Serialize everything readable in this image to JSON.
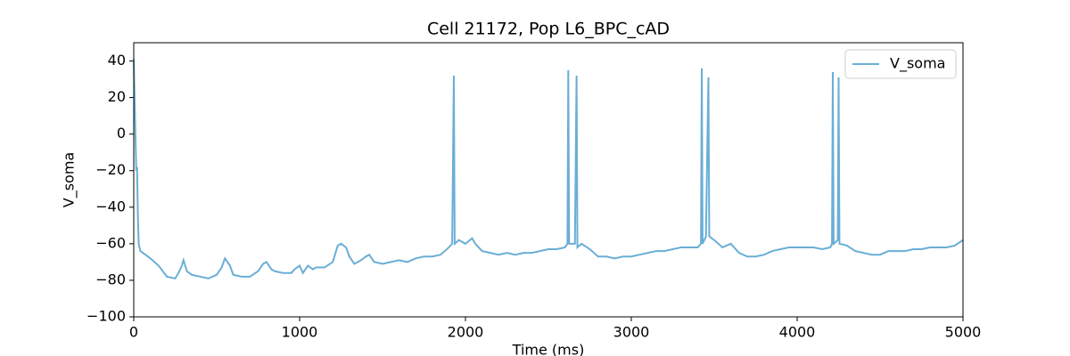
{
  "chart_data": {
    "type": "line",
    "title": "Cell 21172, Pop L6_BPC_cAD",
    "x_label": "Time (ms)",
    "y_label": "V_soma",
    "x": [
      0,
      10,
      15,
      20,
      25,
      30,
      40,
      100,
      150,
      200,
      250,
      270,
      290,
      300,
      320,
      350,
      400,
      450,
      500,
      530,
      550,
      580,
      600,
      650,
      700,
      750,
      780,
      800,
      830,
      850,
      900,
      950,
      970,
      1000,
      1020,
      1050,
      1080,
      1100,
      1150,
      1200,
      1230,
      1250,
      1280,
      1300,
      1330,
      1370,
      1400,
      1420,
      1450,
      1500,
      1550,
      1600,
      1650,
      1700,
      1750,
      1800,
      1850,
      1900,
      1920,
      1930,
      1935,
      1960,
      2000,
      2040,
      2060,
      2100,
      2150,
      2200,
      2250,
      2300,
      2350,
      2400,
      2450,
      2500,
      2550,
      2600,
      2615,
      2620,
      2625,
      2660,
      2670,
      2675,
      2700,
      2750,
      2800,
      2850,
      2900,
      2950,
      3000,
      3050,
      3100,
      3150,
      3200,
      3250,
      3300,
      3350,
      3400,
      3420,
      3425,
      3430,
      3450,
      3465,
      3470,
      3500,
      3550,
      3600,
      3650,
      3700,
      3750,
      3800,
      3850,
      3900,
      3950,
      4000,
      4050,
      4100,
      4150,
      4200,
      4210,
      4215,
      4220,
      4245,
      4250,
      4255,
      4300,
      4350,
      4400,
      4450,
      4500,
      4550,
      4600,
      4650,
      4700,
      4750,
      4800,
      4850,
      4900,
      4950,
      5000
    ],
    "series": [
      {
        "name": "V_soma",
        "color": "#6aaed6",
        "values": [
          41,
          0,
          -20,
          -18,
          -45,
          -60,
          -64,
          -68,
          -72,
          -78,
          -79,
          -76,
          -72,
          -69,
          -75,
          -77,
          -78,
          -79,
          -77,
          -73,
          -68,
          -72,
          -77,
          -78,
          -78,
          -75,
          -71,
          -70,
          -74,
          -75,
          -76,
          -76,
          -74,
          -72,
          -76,
          -72,
          -74,
          -73,
          -73,
          -70,
          -61,
          -60,
          -62,
          -67,
          -71,
          -69,
          -67,
          -66,
          -70,
          -71,
          -70,
          -69,
          -70,
          -68,
          -67,
          -67,
          -66,
          -62,
          -60,
          32,
          -60,
          -58,
          -60,
          -57,
          -60,
          -64,
          -65,
          -66,
          -65,
          -66,
          -65,
          -65,
          -64,
          -63,
          -63,
          -62,
          -60,
          35,
          -60,
          -60,
          32,
          -62,
          -60,
          -63,
          -67,
          -67,
          -68,
          -67,
          -67,
          -66,
          -65,
          -64,
          -64,
          -63,
          -62,
          -62,
          -62,
          -60,
          36,
          -60,
          -56,
          31,
          -56,
          -58,
          -62,
          -60,
          -65,
          -67,
          -67,
          -66,
          -64,
          -63,
          -62,
          -62,
          -62,
          -62,
          -63,
          -62,
          -60,
          34,
          -60,
          -58,
          31,
          -60,
          -61,
          -64,
          -65,
          -66,
          -66,
          -64,
          -64,
          -64,
          -63,
          -63,
          -62,
          -62,
          -62,
          -61,
          -58
        ]
      }
    ],
    "xlim": [
      0,
      5000
    ],
    "xticks": [
      0,
      1000,
      2000,
      3000,
      4000,
      5000
    ],
    "ylim": [
      -100,
      50
    ],
    "yticks": [
      {
        "value": -100,
        "label": "−100"
      },
      {
        "value": -80,
        "label": "−80"
      },
      {
        "value": -60,
        "label": "−60"
      },
      {
        "value": -40,
        "label": "−40"
      },
      {
        "value": -20,
        "label": "−20"
      },
      0,
      20,
      40
    ],
    "legend": "upper right"
  }
}
